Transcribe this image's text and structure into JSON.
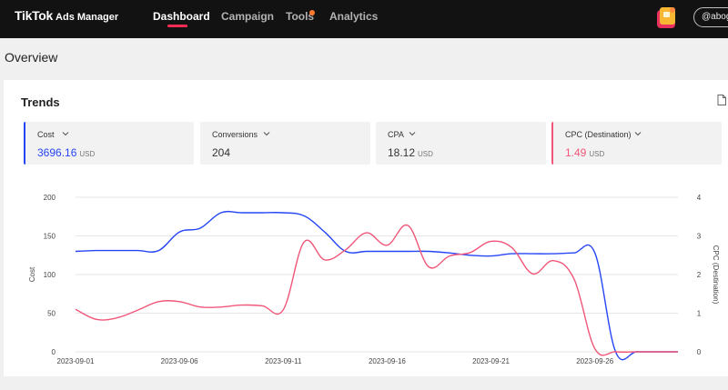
{
  "nav": {
    "brand": "TikTok",
    "brand_sub": "Ads Manager",
    "items": [
      {
        "label": "Dashboard",
        "active": true
      },
      {
        "label": "Campaign",
        "active": false
      },
      {
        "label": "Tools",
        "active": false
      },
      {
        "label": "Analytics",
        "active": false
      }
    ],
    "account": "@abog"
  },
  "page": {
    "title": "Overview"
  },
  "trends": {
    "title": "Trends",
    "metrics": [
      {
        "label": "Cost",
        "value": "3696.16",
        "unit": "USD",
        "accent": "#2646f5"
      },
      {
        "label": "Conversions",
        "value": "204",
        "unit": "",
        "accent": ""
      },
      {
        "label": "CPA",
        "value": "18.12",
        "unit": "USD",
        "accent": ""
      },
      {
        "label": "CPC (Destination)",
        "value": "1.49",
        "unit": "USD",
        "accent": "#f0577a"
      }
    ]
  },
  "chart_data": {
    "type": "line",
    "x": [
      "2023-09-01",
      "2023-09-02",
      "2023-09-03",
      "2023-09-04",
      "2023-09-05",
      "2023-09-06",
      "2023-09-07",
      "2023-09-08",
      "2023-09-09",
      "2023-09-10",
      "2023-09-11",
      "2023-09-12",
      "2023-09-13",
      "2023-09-14",
      "2023-09-15",
      "2023-09-16",
      "2023-09-17",
      "2023-09-18",
      "2023-09-19",
      "2023-09-20",
      "2023-09-21",
      "2023-09-22",
      "2023-09-23",
      "2023-09-24",
      "2023-09-25",
      "2023-09-26",
      "2023-09-27",
      "2023-09-28",
      "2023-09-29",
      "2023-09-30"
    ],
    "x_tick_labels": [
      "2023-09-01",
      "2023-09-06",
      "2023-09-11",
      "2023-09-16",
      "2023-09-21",
      "2023-09-26"
    ],
    "series": [
      {
        "name": "Cost",
        "axis": "left",
        "color": "#2646f5",
        "values": [
          130,
          131,
          131,
          131,
          131,
          155,
          160,
          180,
          180,
          180,
          180,
          176,
          155,
          130,
          130,
          130,
          130,
          130,
          128,
          125,
          124,
          127,
          127,
          127,
          128,
          128,
          0,
          0,
          0,
          0
        ]
      },
      {
        "name": "CPC (Destination)",
        "axis": "right",
        "color": "#f0577a",
        "values": [
          1.1,
          0.84,
          0.88,
          1.08,
          1.3,
          1.3,
          1.16,
          1.16,
          1.21,
          1.19,
          1.09,
          2.84,
          2.38,
          2.64,
          3.08,
          2.76,
          3.27,
          2.2,
          2.48,
          2.57,
          2.86,
          2.7,
          2.02,
          2.36,
          1.88,
          0.08,
          0,
          0,
          0,
          0
        ]
      }
    ],
    "ylabel": "Cost",
    "y2label": "CPC (Destination)",
    "ylim": [
      0,
      200
    ],
    "y2lim": [
      0,
      4
    ],
    "y_ticks": [
      0,
      50,
      100,
      150,
      200
    ],
    "y2_ticks": [
      0,
      1,
      2,
      3,
      4
    ],
    "grid": true
  }
}
